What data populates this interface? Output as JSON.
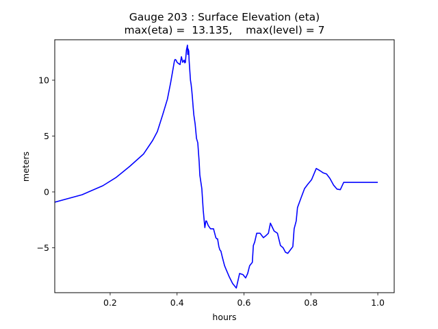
{
  "chart_data": {
    "type": "line",
    "title": "Gauge 203 : Surface Elevation (eta)",
    "subtitle": "max(eta) =  13.135,    max(level) = 7",
    "xlabel": "hours",
    "ylabel": "meters",
    "xlim": [
      0.0344,
      1.049
    ],
    "ylim": [
      -9.02,
      13.62
    ],
    "grid": false,
    "xticks": [
      0.2,
      0.4,
      0.6,
      0.8,
      1.0
    ],
    "xtick_labels": [
      "0.2",
      "0.4",
      "0.6",
      "0.8",
      "1.0"
    ],
    "yticks": [
      -5,
      0,
      5,
      10
    ],
    "ytick_labels": [
      "−5",
      "0",
      "5",
      "10"
    ],
    "series": [
      {
        "name": "eta",
        "color": "#0000ff",
        "x": [
          0.0344,
          0.116,
          0.178,
          0.218,
          0.259,
          0.3,
          0.327,
          0.341,
          0.357,
          0.371,
          0.381,
          0.389,
          0.392,
          0.394,
          0.397,
          0.4,
          0.404,
          0.409,
          0.413,
          0.417,
          0.419,
          0.421,
          0.423,
          0.425,
          0.428,
          0.431,
          0.432,
          0.433,
          0.435,
          0.436,
          0.438,
          0.44,
          0.442,
          0.444,
          0.446,
          0.448,
          0.45,
          0.454,
          0.458,
          0.462,
          0.466,
          0.468,
          0.474,
          0.478,
          0.483,
          0.486,
          0.488,
          0.493,
          0.5,
          0.509,
          0.516,
          0.519,
          0.521,
          0.525,
          0.528,
          0.531,
          0.535,
          0.542,
          0.546,
          0.556,
          0.566,
          0.577,
          0.587,
          0.597,
          0.605,
          0.611,
          0.617,
          0.625,
          0.628,
          0.632,
          0.638,
          0.648,
          0.658,
          0.666,
          0.673,
          0.679,
          0.69,
          0.7,
          0.709,
          0.717,
          0.724,
          0.731,
          0.741,
          0.746,
          0.75,
          0.756,
          0.76,
          0.771,
          0.781,
          0.791,
          0.802,
          0.816,
          0.827,
          0.837,
          0.847,
          0.857,
          0.868,
          0.878,
          0.888,
          0.898,
          0.91,
          0.915,
          0.925,
          0.935,
          0.945,
          0.954,
          0.969,
          0.982,
          0.996,
          1.0
        ],
        "y": [
          -0.92,
          -0.25,
          0.55,
          1.3,
          2.3,
          3.4,
          4.6,
          5.4,
          6.9,
          8.3,
          9.8,
          11.2,
          11.7,
          11.85,
          11.8,
          11.6,
          11.5,
          11.4,
          12.1,
          11.6,
          11.7,
          11.8,
          11.55,
          11.6,
          12.7,
          13.135,
          12.3,
          12.8,
          12.6,
          11.8,
          10.9,
          10.0,
          9.6,
          9.1,
          8.4,
          7.6,
          6.9,
          6.1,
          4.8,
          4.4,
          2.7,
          1.5,
          0.3,
          -1.6,
          -3.2,
          -2.6,
          -2.6,
          -3.0,
          -3.3,
          -3.3,
          -4.1,
          -4.2,
          -4.2,
          -4.9,
          -5.2,
          -5.3,
          -5.8,
          -6.6,
          -6.9,
          -7.6,
          -8.2,
          -8.6,
          -7.3,
          -7.4,
          -7.7,
          -7.3,
          -6.6,
          -6.3,
          -4.8,
          -4.5,
          -3.7,
          -3.7,
          -4.1,
          -3.9,
          -3.7,
          -2.8,
          -3.5,
          -3.7,
          -4.8,
          -5.0,
          -5.4,
          -5.5,
          -5.1,
          -4.9,
          -3.3,
          -2.6,
          -1.4,
          -0.5,
          0.3,
          0.7,
          1.1,
          2.1,
          1.9,
          1.7,
          1.6,
          1.2,
          0.6,
          0.25,
          0.2,
          0.85,
          0.85,
          0.85,
          0.85,
          0.85,
          0.85,
          0.85,
          0.85,
          0.85,
          0.85,
          0.85
        ]
      }
    ]
  }
}
